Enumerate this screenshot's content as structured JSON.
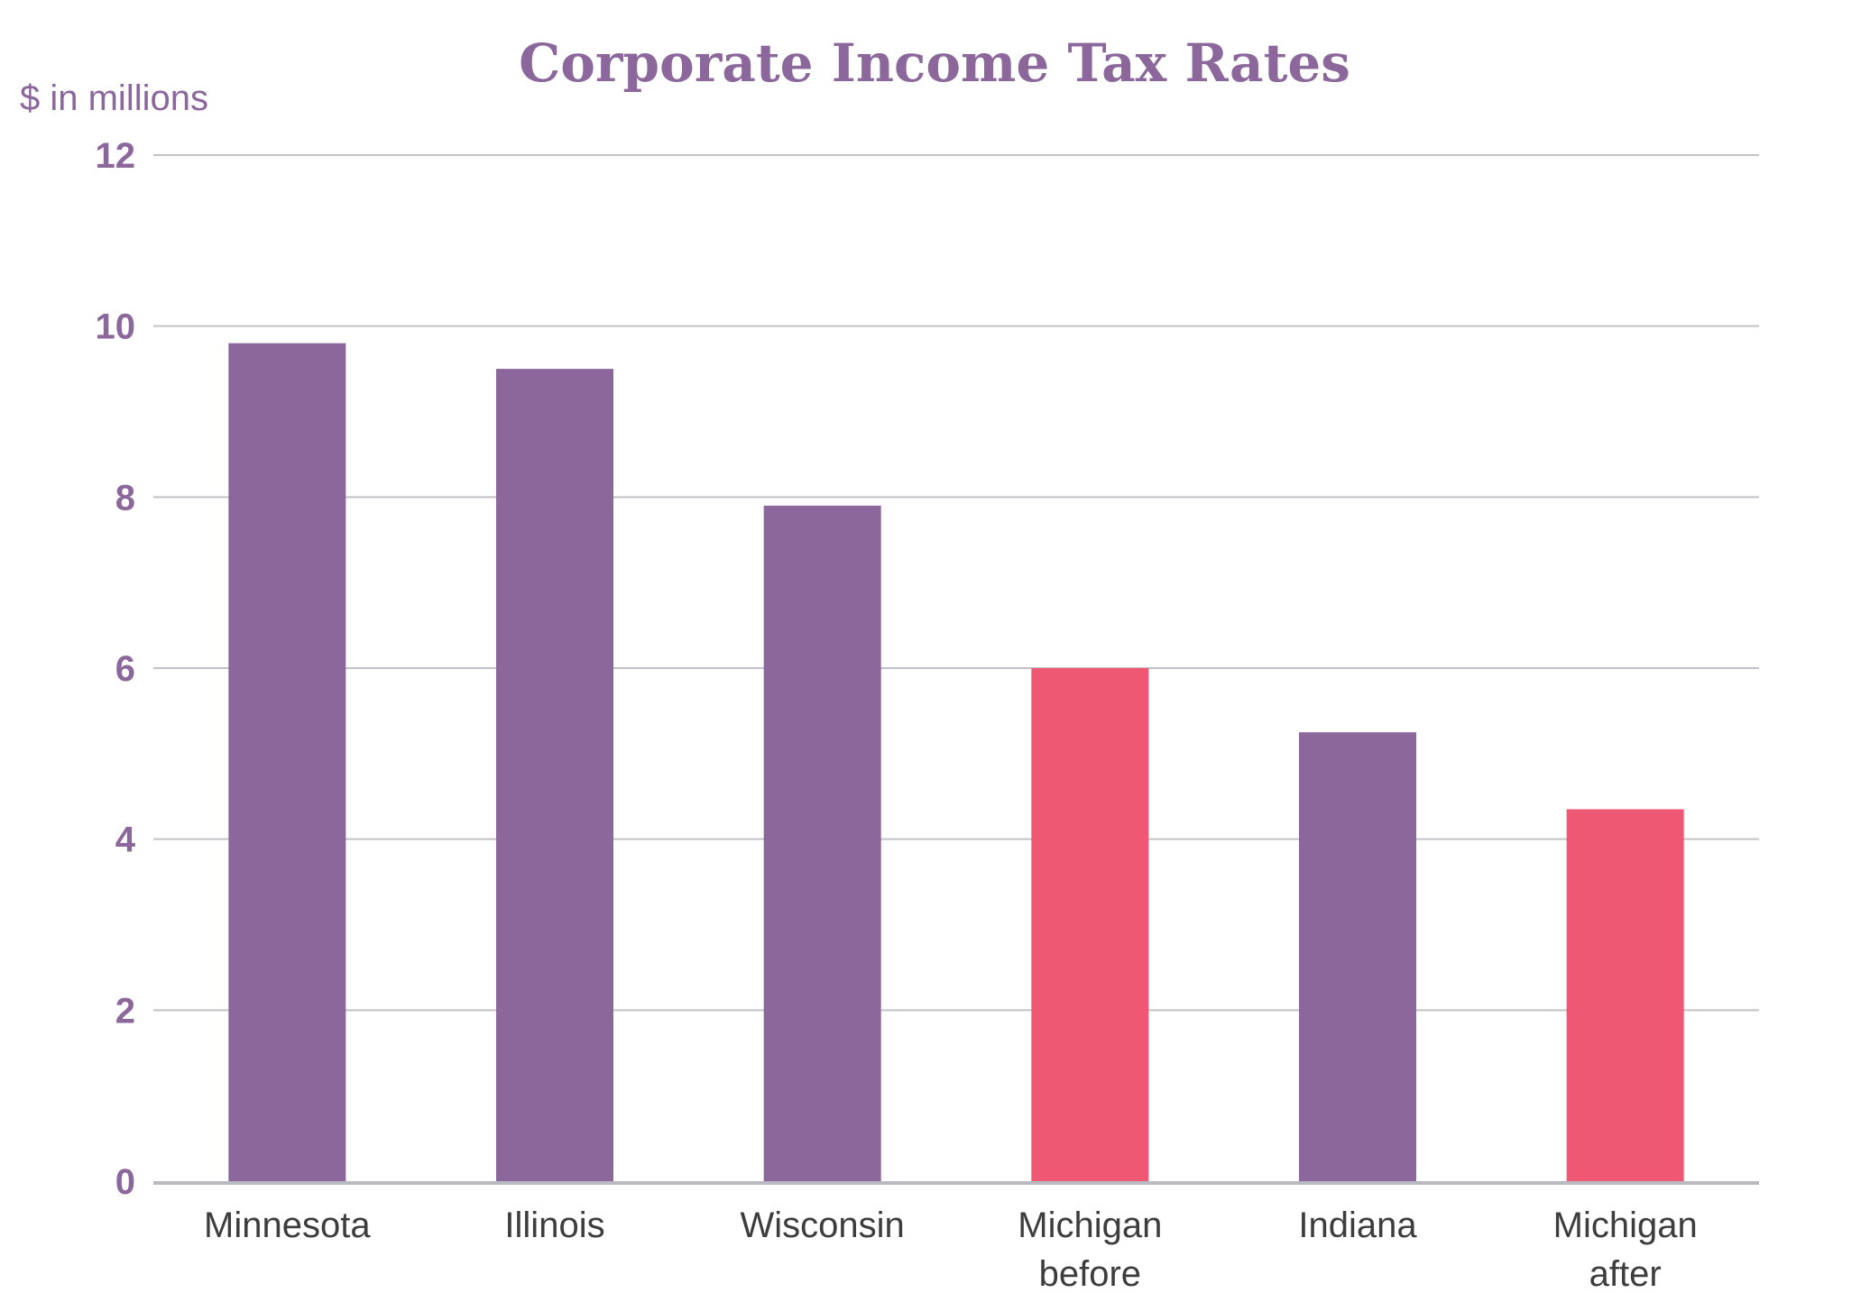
{
  "chart_data": {
    "type": "bar",
    "title": "Corporate Income Tax Rates",
    "unit_label": "$ in millions",
    "xlabel": "",
    "ylabel": "",
    "ylim": [
      0,
      12
    ],
    "yticks": [
      "0",
      "2",
      "4",
      "6",
      "8",
      "10",
      "12"
    ],
    "grid": true,
    "categories": [
      [
        "Minnesota"
      ],
      [
        "Illinois"
      ],
      [
        "Wisconsin"
      ],
      [
        "Michigan",
        "before"
      ],
      [
        "Indiana"
      ],
      [
        "Michigan",
        "after"
      ]
    ],
    "values": [
      9.8,
      9.5,
      7.9,
      6.0,
      5.25,
      4.35
    ],
    "bar_colors": [
      "#8c679c",
      "#8c679c",
      "#8c679c",
      "#ee5872",
      "#8c679c",
      "#ee5872"
    ]
  },
  "colors": {
    "title": "#8c679c",
    "axis_text": "#8c679c",
    "category_text": "#3d3d3d",
    "grid": "#c2c2c8",
    "baseline": "#b9b9c2"
  }
}
